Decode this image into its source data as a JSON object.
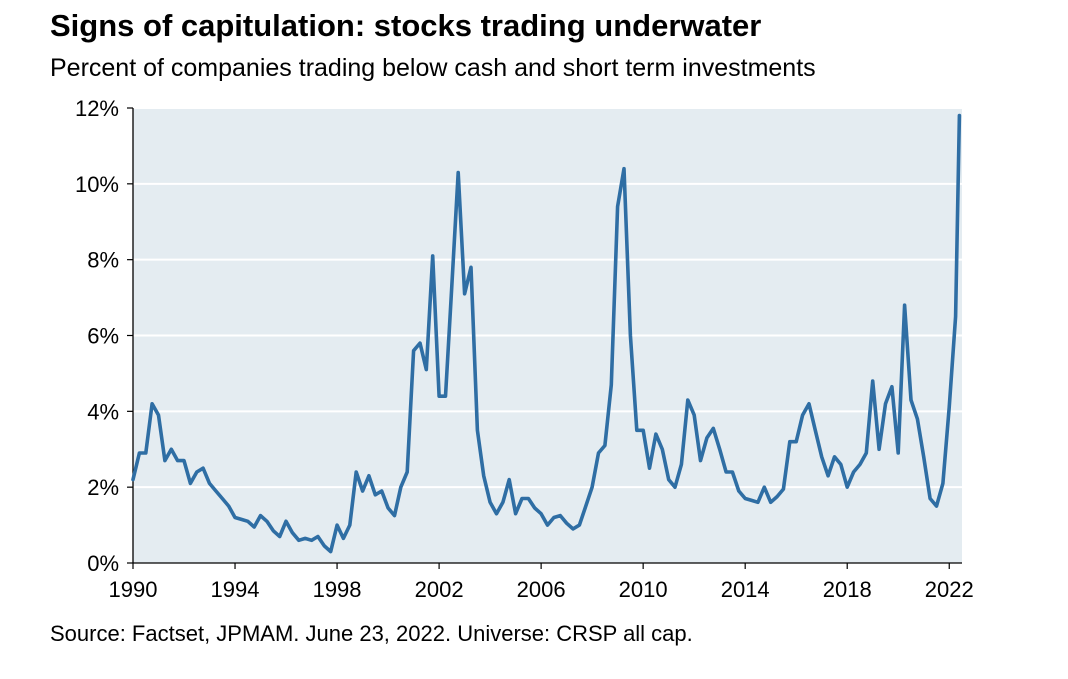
{
  "chart_data": {
    "type": "line",
    "title": "Signs of capitulation: stocks trading underwater",
    "subtitle": "Percent of companies trading below cash and short term investments",
    "source": "Source: Factset, JPMAM. June 23, 2022. Universe: CRSP all cap.",
    "xlabel": "",
    "ylabel": "",
    "xlim": [
      1990,
      2022.5
    ],
    "ylim": [
      0,
      12
    ],
    "x_ticks": [
      1990,
      1994,
      1998,
      2002,
      2006,
      2010,
      2014,
      2018,
      2022
    ],
    "x_tick_labels": [
      "1990",
      "1994",
      "1998",
      "2002",
      "2006",
      "2010",
      "2014",
      "2018",
      "2022"
    ],
    "y_ticks": [
      0,
      2,
      4,
      6,
      8,
      10,
      12
    ],
    "y_tick_labels": [
      "0%",
      "2%",
      "4%",
      "6%",
      "8%",
      "10%",
      "12%"
    ],
    "grid": "horizontal",
    "plot_background": "#e4ecf1",
    "series": [
      {
        "color": "#2f6ea4",
        "x": [
          1990.0,
          1990.25,
          1990.5,
          1990.75,
          1991.0,
          1991.25,
          1991.5,
          1991.75,
          1992.0,
          1992.25,
          1992.5,
          1992.75,
          1993.0,
          1993.25,
          1993.5,
          1993.75,
          1994.0,
          1994.25,
          1994.5,
          1994.75,
          1995.0,
          1995.25,
          1995.5,
          1995.75,
          1996.0,
          1996.25,
          1996.5,
          1996.75,
          1997.0,
          1997.25,
          1997.5,
          1997.75,
          1998.0,
          1998.25,
          1998.5,
          1998.75,
          1999.0,
          1999.25,
          1999.5,
          1999.75,
          2000.0,
          2000.25,
          2000.5,
          2000.75,
          2001.0,
          2001.25,
          2001.5,
          2001.75,
          2002.0,
          2002.25,
          2002.5,
          2002.75,
          2003.0,
          2003.25,
          2003.5,
          2003.75,
          2004.0,
          2004.25,
          2004.5,
          2004.75,
          2005.0,
          2005.25,
          2005.5,
          2005.75,
          2006.0,
          2006.25,
          2006.5,
          2006.75,
          2007.0,
          2007.25,
          2007.5,
          2007.75,
          2008.0,
          2008.25,
          2008.5,
          2008.75,
          2009.0,
          2009.25,
          2009.5,
          2009.75,
          2010.0,
          2010.25,
          2010.5,
          2010.75,
          2011.0,
          2011.25,
          2011.5,
          2011.75,
          2012.0,
          2012.25,
          2012.5,
          2012.75,
          2013.0,
          2013.25,
          2013.5,
          2013.75,
          2014.0,
          2014.25,
          2014.5,
          2014.75,
          2015.0,
          2015.25,
          2015.5,
          2015.75,
          2016.0,
          2016.25,
          2016.5,
          2016.75,
          2017.0,
          2017.25,
          2017.5,
          2017.75,
          2018.0,
          2018.25,
          2018.5,
          2018.75,
          2019.0,
          2019.25,
          2019.5,
          2019.75,
          2020.0,
          2020.25,
          2020.5,
          2020.75,
          2021.0,
          2021.25,
          2021.5,
          2021.75,
          2022.0,
          2022.25,
          2022.4
        ],
        "values": [
          2.2,
          2.9,
          2.9,
          4.2,
          3.9,
          2.7,
          3.0,
          2.7,
          2.7,
          2.1,
          2.4,
          2.5,
          2.1,
          1.9,
          1.7,
          1.5,
          1.2,
          1.15,
          1.1,
          0.95,
          1.25,
          1.1,
          0.85,
          0.7,
          1.1,
          0.8,
          0.6,
          0.65,
          0.6,
          0.7,
          0.45,
          0.3,
          1.0,
          0.65,
          1.0,
          2.4,
          1.9,
          2.3,
          1.8,
          1.9,
          1.45,
          1.25,
          2.0,
          2.4,
          5.6,
          5.8,
          5.1,
          8.1,
          4.4,
          4.4,
          7.3,
          10.3,
          7.1,
          7.8,
          3.5,
          2.3,
          1.6,
          1.3,
          1.6,
          2.2,
          1.3,
          1.7,
          1.7,
          1.45,
          1.3,
          1.0,
          1.2,
          1.25,
          1.05,
          0.9,
          1.0,
          1.5,
          2.0,
          2.9,
          3.1,
          4.7,
          9.4,
          10.4,
          6.0,
          3.5,
          3.5,
          2.5,
          3.4,
          3.0,
          2.2,
          2.0,
          2.6,
          4.3,
          3.9,
          2.7,
          3.3,
          3.55,
          3.0,
          2.4,
          2.4,
          1.9,
          1.7,
          1.65,
          1.6,
          2.0,
          1.6,
          1.75,
          1.95,
          3.2,
          3.2,
          3.9,
          4.2,
          3.5,
          2.8,
          2.3,
          2.8,
          2.6,
          2.0,
          2.4,
          2.6,
          2.9,
          4.8,
          3.0,
          4.2,
          4.65,
          2.9,
          6.8,
          4.3,
          3.8,
          2.8,
          1.7,
          1.5,
          2.1,
          4.1,
          6.5,
          11.8
        ]
      }
    ]
  }
}
